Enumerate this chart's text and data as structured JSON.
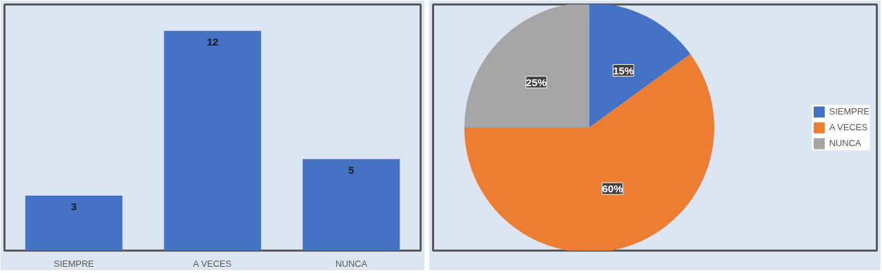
{
  "chart_data": [
    {
      "type": "bar",
      "categories": [
        "SIEMPRE",
        "A VECES",
        "NUNCA"
      ],
      "values": [
        3,
        12,
        5
      ],
      "color": "#4472c4",
      "data_labels": true,
      "grid": false,
      "tick_labels": "x"
    },
    {
      "type": "pie",
      "categories": [
        "SIEMPRE",
        "A VECES",
        "NUNCA"
      ],
      "values": [
        15,
        60,
        25
      ],
      "colors": [
        "#4472c4",
        "#ed7d31",
        "#a5a5a5"
      ],
      "value_labels": [
        "15%",
        "60%",
        "25%"
      ],
      "legend": "right"
    }
  ]
}
